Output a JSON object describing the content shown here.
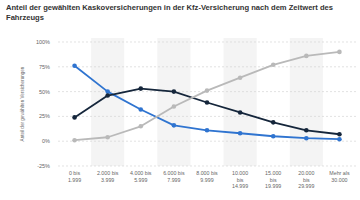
{
  "chart_data": {
    "type": "line",
    "title": "Anteil der gewählten Kaskoversicherungen in der Kfz-Versicherung nach dem Zeitwert des Fahrzeugs",
    "y_label": "Anteil der gewählten Versicherungen",
    "categories": [
      "0 bis 1.999",
      "2.000 bis 3.999",
      "4.000 bis 5.999",
      "6.000 bis 7.999",
      "8.000 bis 9.999",
      "10.000 bis 14.999",
      "15.000 bis 19.999",
      "20.000 bis 29.999",
      "Mehr als 30.000"
    ],
    "series": [
      {
        "color": "#2f74d0",
        "marker": "circle",
        "values": [
          76,
          50,
          32,
          16,
          11,
          8,
          5,
          3,
          2
        ]
      },
      {
        "color": "#15263b",
        "marker": "circle",
        "values": [
          24,
          46,
          53,
          50,
          39,
          29,
          19,
          11,
          7
        ]
      },
      {
        "color": "#b9b9b9",
        "marker": "circle",
        "values": [
          1,
          4,
          15,
          35,
          51,
          64,
          77,
          86,
          90
        ]
      }
    ],
    "ylim": [
      -25,
      100
    ],
    "yticks": [
      {
        "value": -25,
        "label": "-25%"
      },
      {
        "value": 0,
        "label": "0%"
      },
      {
        "value": 25,
        "label": "25%"
      },
      {
        "value": 50,
        "label": "50%"
      },
      {
        "value": 75,
        "label": "75%"
      },
      {
        "value": 100,
        "label": "100%"
      }
    ],
    "grid": true
  }
}
